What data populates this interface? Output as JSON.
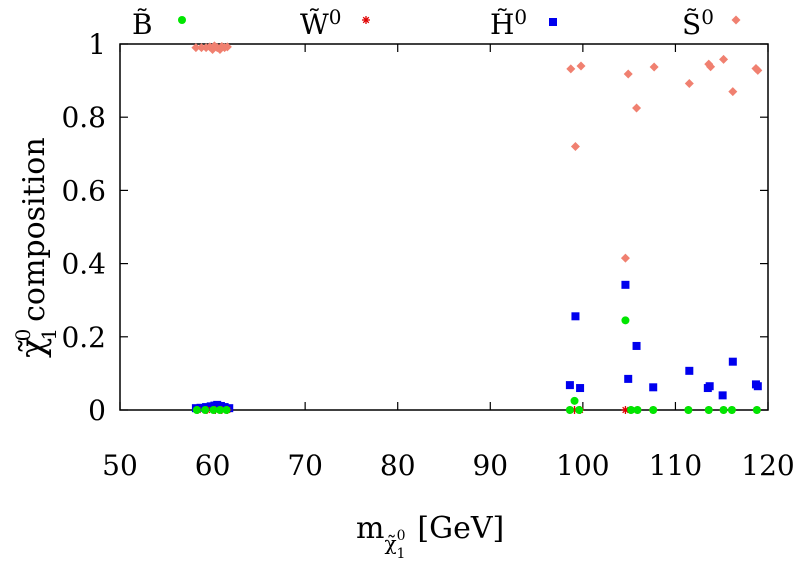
{
  "chart_data": {
    "type": "scatter",
    "title": "",
    "xlabel": "m",
    "xlabel_sub": "χ̃",
    "xlabel_subsup": "0",
    "xlabel_subsub": "1",
    "xlabel_unit": "[GeV]",
    "ylabel": "χ̃",
    "ylabel_sup": "0",
    "ylabel_sub": "1",
    "ylabel_rest": "composition",
    "xlim": [
      50,
      120
    ],
    "ylim": [
      0,
      1
    ],
    "xticks": [
      50,
      60,
      70,
      80,
      90,
      100,
      110,
      120
    ],
    "yticks": [
      0,
      0.2,
      0.4,
      0.6,
      0.8,
      1
    ],
    "ytick_labels": [
      "0",
      "0.2",
      "0.4",
      "0.6",
      "0.8",
      "1"
    ],
    "grid": false,
    "legend_position": "top",
    "series": [
      {
        "name": "B̃",
        "color": "#00e600",
        "marker": "circle",
        "points": [
          [
            58.3,
            0
          ],
          [
            59.2,
            0
          ],
          [
            60.1,
            0
          ],
          [
            60.8,
            0
          ],
          [
            61.5,
            0
          ],
          [
            98.6,
            0
          ],
          [
            99.1,
            0.025
          ],
          [
            99.6,
            0
          ],
          [
            104.6,
            0.245
          ],
          [
            105.2,
            0
          ],
          [
            105.9,
            0
          ],
          [
            107.6,
            0
          ],
          [
            111.4,
            0
          ],
          [
            113.6,
            0
          ],
          [
            115.2,
            0
          ],
          [
            116.1,
            0
          ],
          [
            118.8,
            0
          ]
        ]
      },
      {
        "name": "W̃",
        "sup": "0",
        "color": "#e00000",
        "marker": "star",
        "points": [
          [
            58.4,
            0
          ],
          [
            59.4,
            0
          ],
          [
            60.3,
            0
          ],
          [
            61.0,
            0
          ],
          [
            61.6,
            0
          ],
          [
            98.6,
            0
          ],
          [
            99.1,
            0
          ],
          [
            99.7,
            0
          ],
          [
            104.6,
            0
          ],
          [
            105.2,
            0
          ],
          [
            105.9,
            0
          ],
          [
            107.6,
            0
          ],
          [
            111.4,
            0
          ],
          [
            113.6,
            0
          ],
          [
            115.2,
            0
          ],
          [
            116.1,
            0
          ],
          [
            118.8,
            0
          ]
        ]
      },
      {
        "name": "H̃",
        "sup": "0",
        "color": "#0000ee",
        "marker": "square",
        "points": [
          [
            58.2,
            0.005
          ],
          [
            58.7,
            0.006
          ],
          [
            59.3,
            0.008
          ],
          [
            59.8,
            0.01
          ],
          [
            60.2,
            0.012
          ],
          [
            60.5,
            0.014
          ],
          [
            60.9,
            0.011
          ],
          [
            61.3,
            0.008
          ],
          [
            61.8,
            0.005
          ],
          [
            98.6,
            0.068
          ],
          [
            99.2,
            0.256
          ],
          [
            99.7,
            0.06
          ],
          [
            104.6,
            0.342
          ],
          [
            104.9,
            0.085
          ],
          [
            105.8,
            0.175
          ],
          [
            107.6,
            0.062
          ],
          [
            111.5,
            0.107
          ],
          [
            113.5,
            0.06
          ],
          [
            113.7,
            0.065
          ],
          [
            115.1,
            0.04
          ],
          [
            116.2,
            0.132
          ],
          [
            118.7,
            0.07
          ],
          [
            118.9,
            0.065
          ]
        ]
      },
      {
        "name": "S̃",
        "sup": "0",
        "color": "#f08070",
        "marker": "diamond",
        "points": [
          [
            58.2,
            0.99
          ],
          [
            58.8,
            0.99
          ],
          [
            59.3,
            0.99
          ],
          [
            59.7,
            0.992
          ],
          [
            60.0,
            0.985
          ],
          [
            60.2,
            0.995
          ],
          [
            60.5,
            0.99
          ],
          [
            60.8,
            0.985
          ],
          [
            61.0,
            0.993
          ],
          [
            61.3,
            0.99
          ],
          [
            61.6,
            0.992
          ],
          [
            98.7,
            0.932
          ],
          [
            99.2,
            0.72
          ],
          [
            99.8,
            0.94
          ],
          [
            104.6,
            0.415
          ],
          [
            104.9,
            0.918
          ],
          [
            105.8,
            0.825
          ],
          [
            107.7,
            0.937
          ],
          [
            111.5,
            0.892
          ],
          [
            113.6,
            0.945
          ],
          [
            113.8,
            0.938
          ],
          [
            115.2,
            0.958
          ],
          [
            116.2,
            0.87
          ],
          [
            118.7,
            0.933
          ],
          [
            118.9,
            0.928
          ]
        ]
      }
    ]
  }
}
